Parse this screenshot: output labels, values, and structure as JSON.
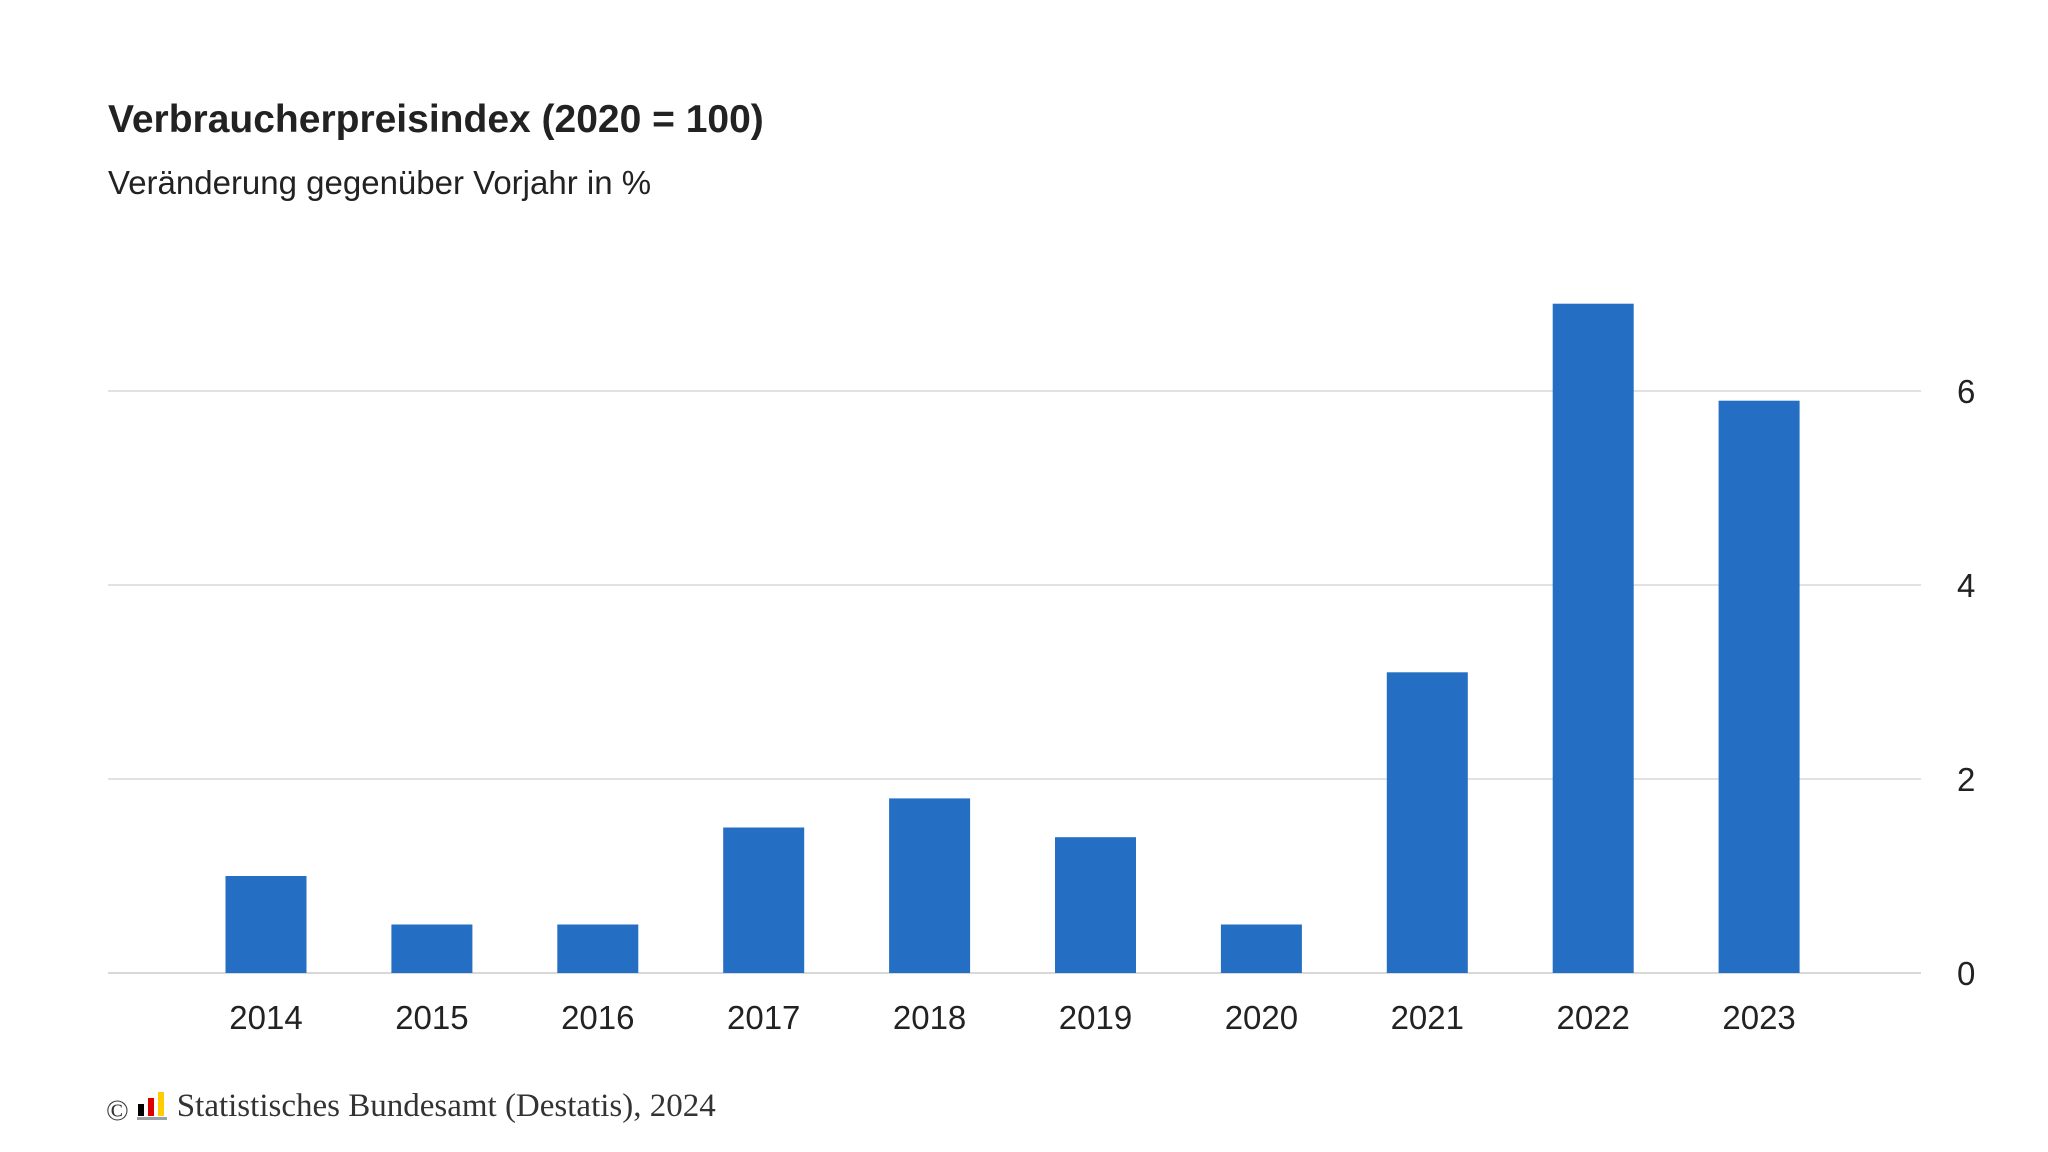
{
  "title": "Verbraucherpreisindex (2020 = 100)",
  "subtitle": "Veränderung gegenüber Vorjahr in %",
  "footer": {
    "copyright_symbol": "©",
    "source": "Statistisches Bundesamt (Destatis), 2024",
    "logo_icon": "destatis-logo-icon",
    "logo_colors": [
      "#000000",
      "#dd0000",
      "#ffcc00"
    ]
  },
  "colors": {
    "bar": "#246ec4",
    "grid": "#d9d9d9",
    "text": "#222222"
  },
  "chart_data": {
    "type": "bar",
    "categories": [
      "2014",
      "2015",
      "2016",
      "2017",
      "2018",
      "2019",
      "2020",
      "2021",
      "2022",
      "2023"
    ],
    "values": [
      1.0,
      0.5,
      0.5,
      1.5,
      1.8,
      1.4,
      0.5,
      3.1,
      6.9,
      5.9
    ],
    "yticks": [
      0,
      2,
      4,
      6
    ],
    "ylim": [
      0,
      6.9
    ],
    "y_axis_position": "right",
    "grid": true,
    "xlabel": "",
    "ylabel": ""
  }
}
